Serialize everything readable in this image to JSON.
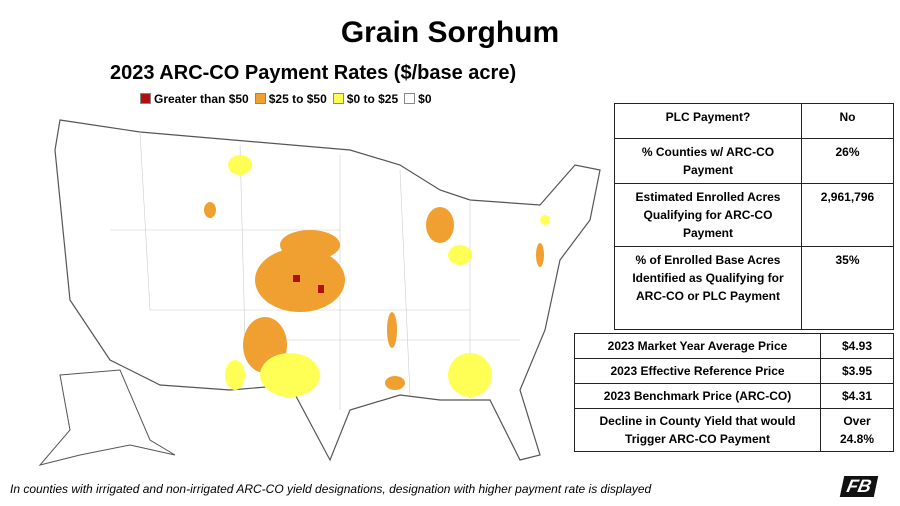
{
  "header": {
    "title": "Grain Sorghum",
    "subtitle": "2023 ARC-CO Payment Rates ($/base acre)"
  },
  "legend": [
    {
      "label": "Greater than $50",
      "color": "#b01010"
    },
    {
      "label": "$25 to $50",
      "color": "#f0a030"
    },
    {
      "label": "$0 to $25",
      "color": "#ffff55"
    },
    {
      "label": "$0",
      "color": "#ffffff"
    }
  ],
  "table1": {
    "rows": [
      [
        "PLC Payment?",
        "No"
      ],
      [
        "% Counties w/ ARC-CO Payment",
        "26%"
      ],
      [
        "Estimated Enrolled Acres Qualifying for ARC-CO Payment",
        "2,961,796"
      ],
      [
        "% of Enrolled Base Acres Identified as Qualifying for ARC-CO or PLC Payment",
        "35%"
      ]
    ]
  },
  "table2": {
    "rows": [
      [
        "2023 Market Year Average Price",
        "$4.93"
      ],
      [
        "2023 Effective Reference Price",
        "$3.95"
      ],
      [
        "2023 Benchmark Price (ARC-CO)",
        "$4.31"
      ],
      [
        "Decline in County Yield that would Trigger ARC-CO Payment",
        "Over 24.8%"
      ]
    ]
  },
  "footnote": "In counties with irrigated and non-irrigated ARC-CO yield designations, designation with higher payment rate is displayed",
  "logo": "FB"
}
